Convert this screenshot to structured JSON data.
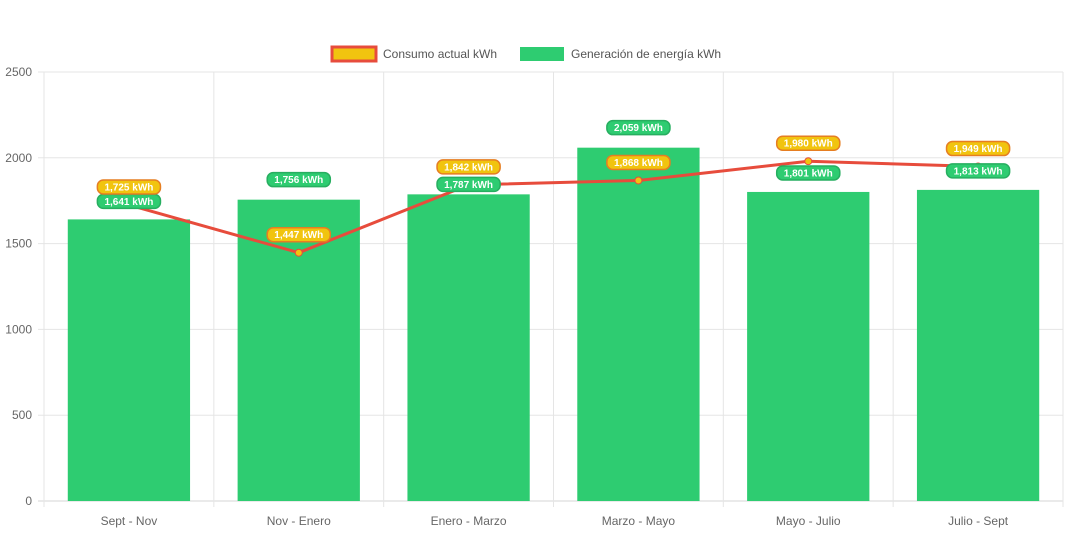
{
  "chart_data": {
    "type": "bar",
    "categories": [
      "Sept - Nov",
      "Nov - Enero",
      "Enero - Marzo",
      "Marzo - Mayo",
      "Mayo - Julio",
      "Julio - Sept"
    ],
    "ylim": [
      0,
      2500
    ],
    "yticks": [
      0,
      500,
      1000,
      1500,
      2000,
      2500
    ],
    "grid": true,
    "legend_position": "top",
    "series": [
      {
        "name": "Consumo actual kWh",
        "type": "line",
        "color": "#e74c3c",
        "fill": "#f1c40f",
        "values": [
          1725,
          1447,
          1842,
          1868,
          1980,
          1949
        ],
        "labels": [
          "1,725 kWh",
          "1,447 kWh",
          "1,842 kWh",
          "1,868 kWh",
          "1,980 kWh",
          "1,949 kWh"
        ]
      },
      {
        "name": "Generación de energía kWh",
        "type": "bar",
        "color": "#2ecc71",
        "values": [
          1641,
          1756,
          1787,
          2059,
          1801,
          1813
        ],
        "labels": [
          "1,641 kWh",
          "1,756 kWh",
          "1,787 kWh",
          "2,059 kWh",
          "1,801 kWh",
          "1,813 kWh"
        ]
      }
    ]
  }
}
